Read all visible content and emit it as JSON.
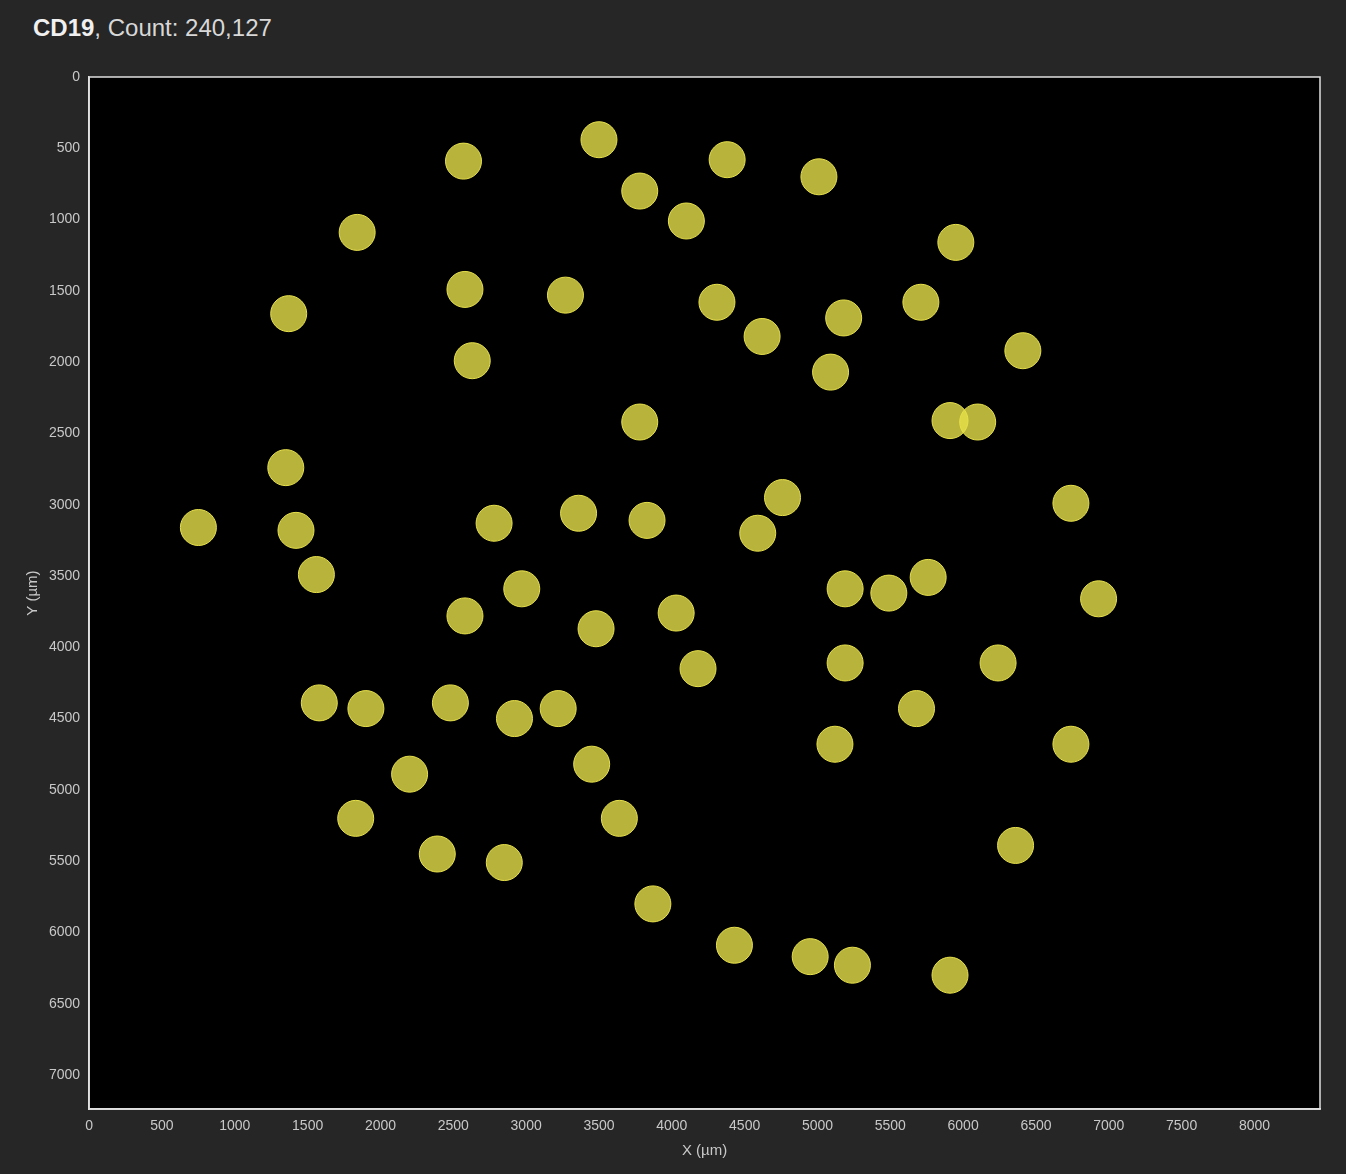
{
  "chart_data": {
    "type": "scatter",
    "title": "CD19, Count: 240,127",
    "x_label": "X (µm)",
    "y_label": "Y (µm)",
    "x": [
      3500,
      2570,
      4380,
      5010,
      1370,
      6410,
      4620,
      5180,
      4100,
      2580,
      3270,
      2630,
      5910,
      6100,
      5090,
      3780,
      750,
      1420,
      1560,
      1350,
      2780,
      3360,
      3830,
      4760,
      4590,
      5190,
      5490,
      5760,
      6930,
      3480,
      2970,
      2580,
      4030,
      4180,
      5190,
      1580,
      1900,
      2480,
      2920,
      3220,
      2200,
      3450,
      5120,
      5680,
      6240,
      6740,
      1830,
      2390,
      2850,
      3640,
      6360,
      3870,
      4430,
      4950,
      5240,
      5910,
      1840,
      3780,
      5950,
      6740,
      5710,
      4310
    ],
    "y": [
      440,
      590,
      580,
      700,
      1660,
      1920,
      1820,
      1690,
      1010,
      1490,
      1530,
      1990,
      2410,
      2420,
      2070,
      2420,
      3160,
      3180,
      3490,
      2740,
      3130,
      3060,
      3110,
      2950,
      3200,
      3590,
      3620,
      3510,
      3660,
      3870,
      3590,
      3780,
      3760,
      4150,
      4110,
      4390,
      4430,
      4390,
      4500,
      4430,
      4890,
      4820,
      4680,
      4430,
      4110,
      4680,
      5200,
      5450,
      5510,
      5200,
      5390,
      5800,
      6090,
      6170,
      6230,
      6300,
      1090,
      800,
      1160,
      2990,
      1580,
      1580
    ],
    "color": "#e6e04a",
    "marker": "circle",
    "xlim": [
      0,
      8450
    ],
    "ylim": [
      7240,
      0
    ],
    "xticks": [
      0,
      500,
      1000,
      1500,
      2000,
      2500,
      3000,
      3500,
      4000,
      4500,
      5000,
      5500,
      6000,
      6500,
      7000,
      7500,
      8000
    ],
    "yticks": [
      0,
      500,
      1000,
      1500,
      2000,
      2500,
      3000,
      3500,
      4000,
      4500,
      5000,
      5500,
      6000,
      6500,
      7000
    ],
    "grid": false,
    "tick_labels": true
  }
}
